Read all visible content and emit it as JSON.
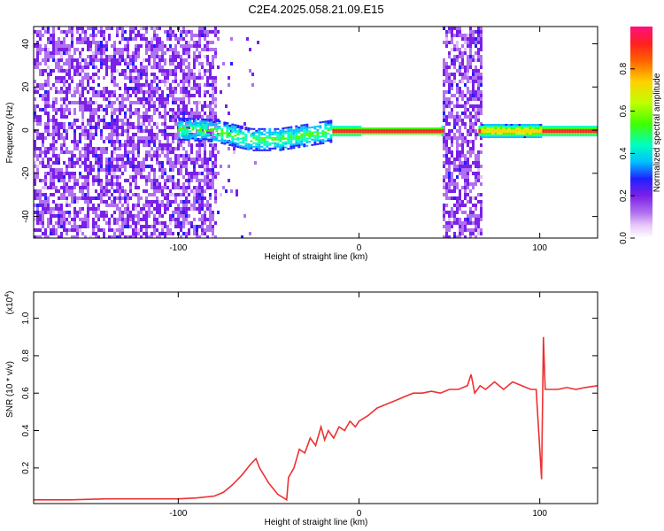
{
  "title": "C2E4.2025.058.21.09.E15",
  "chart_data": [
    {
      "type": "heatmap",
      "xlabel": "Height of straight line (km)",
      "ylabel": "Frequency (Hz)",
      "xlim": [
        -180,
        132
      ],
      "ylim": [
        -50,
        48
      ],
      "x_ticks": [
        -100,
        0,
        100
      ],
      "y_ticks": [
        -40,
        -20,
        0,
        20,
        40
      ],
      "colorbar": {
        "label": "Normalized spectral amplitude",
        "range": [
          0,
          1
        ],
        "ticks": [
          "0.0",
          "0.2",
          "0.4",
          "0.6",
          "0.8"
        ],
        "colors": [
          "#ffffff",
          "#e0c0f8",
          "#b070f0",
          "#7a20e8",
          "#2020ff",
          "#00c0ff",
          "#00ffc0",
          "#40ff00",
          "#c0ff00",
          "#ffd000",
          "#ff6000",
          "#ff2020",
          "#ff1080"
        ]
      },
      "features": {
        "noise_region": [
          -180,
          -80
        ],
        "sparse_region": [
          -80,
          -55
        ],
        "band_region": [
          -100,
          133
        ],
        "gap_region": [
          45,
          67
        ],
        "band_center_line": [
          [
            -100,
            1
          ],
          [
            -80,
            0
          ],
          [
            -60,
            -4
          ],
          [
            -45,
            -4
          ],
          [
            -30,
            -2
          ],
          [
            -15,
            0
          ],
          [
            0,
            0
          ],
          [
            45,
            0
          ],
          [
            67,
            0
          ],
          [
            100,
            0
          ],
          [
            132,
            0
          ]
        ]
      }
    },
    {
      "type": "line",
      "xlabel": "Height of straight line (km)",
      "ylabel": "SNR (10 * v/v)",
      "y_multiplier": "(x10^4)",
      "xlim": [
        -180,
        132
      ],
      "ylim": [
        0.01,
        1.14
      ],
      "x_ticks": [
        -100,
        0,
        100
      ],
      "y_ticks": [
        "0.2",
        "0.4",
        "0.6",
        "0.8",
        "1.0"
      ],
      "series": [
        {
          "color": "#ee3030",
          "x": [
            -180,
            -160,
            -140,
            -120,
            -100,
            -90,
            -80,
            -75,
            -70,
            -65,
            -60,
            -57,
            -55,
            -50,
            -45,
            -40,
            -39,
            -36,
            -33,
            -30,
            -27,
            -24,
            -21,
            -19,
            -17,
            -14,
            -11,
            -8,
            -5,
            -2,
            0,
            5,
            10,
            15,
            20,
            25,
            30,
            35,
            40,
            45,
            50,
            55,
            60,
            62,
            64,
            67,
            70,
            75,
            80,
            85,
            90,
            95,
            98,
            100,
            101,
            102,
            103,
            105,
            110,
            115,
            120,
            125,
            132
          ],
          "y": [
            0.03,
            0.03,
            0.035,
            0.035,
            0.035,
            0.04,
            0.05,
            0.07,
            0.11,
            0.16,
            0.22,
            0.25,
            0.2,
            0.12,
            0.06,
            0.03,
            0.15,
            0.2,
            0.3,
            0.28,
            0.36,
            0.32,
            0.42,
            0.35,
            0.4,
            0.36,
            0.42,
            0.4,
            0.45,
            0.42,
            0.45,
            0.48,
            0.52,
            0.54,
            0.56,
            0.58,
            0.6,
            0.6,
            0.61,
            0.6,
            0.62,
            0.62,
            0.64,
            0.7,
            0.6,
            0.64,
            0.62,
            0.66,
            0.62,
            0.66,
            0.64,
            0.62,
            0.62,
            0.3,
            0.14,
            0.9,
            0.62,
            0.62,
            0.62,
            0.63,
            0.62,
            0.63,
            0.64
          ]
        }
      ]
    }
  ]
}
